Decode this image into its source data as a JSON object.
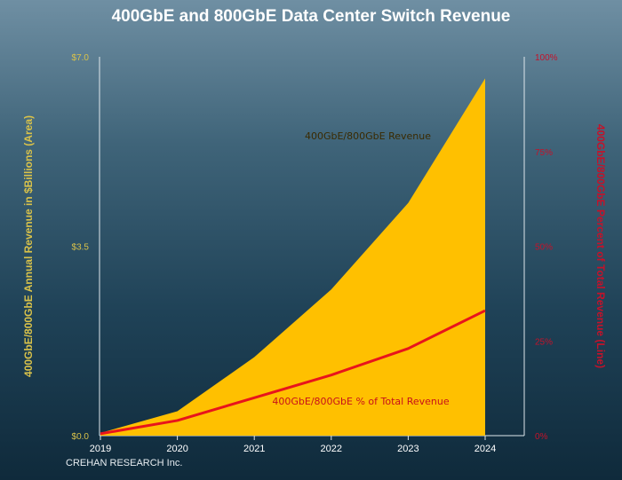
{
  "chart_data": {
    "type": "area",
    "title": "400GbE and 800GbE Data Center Switch Revenue",
    "source": "CREHAN RESEARCH Inc.",
    "ylabel_left": "400GbE/800GbE Annual Revenue in $Billions (Area)",
    "ylabel_right": "400GbE/800GbE Percent of Total Revenue (Line)",
    "x": [
      "2019",
      "2020",
      "2021",
      "2022",
      "2023",
      "2024"
    ],
    "y_left_ticks": [
      "$0.0",
      "$3.5",
      "$7.0"
    ],
    "y_left_range": [
      0,
      7
    ],
    "y_right_ticks": [
      "0%",
      "25%",
      "50%",
      "75%",
      "100%"
    ],
    "y_right_range": [
      0,
      100
    ],
    "colors": {
      "area": "#ffc000",
      "line": "#e8141c",
      "left_axis_text": "#d9c24a",
      "right_axis_text": "#c4122a"
    },
    "series": [
      {
        "name": "400GbE/800GbE Revenue",
        "axis": "left",
        "style": "area",
        "values": [
          0.05,
          0.45,
          1.45,
          2.7,
          4.3,
          6.6
        ]
      },
      {
        "name": "400GbE/800GbE % of Total Revenue",
        "axis": "right",
        "style": "line",
        "values": [
          0.5,
          4,
          10,
          16,
          23,
          33
        ]
      }
    ]
  }
}
